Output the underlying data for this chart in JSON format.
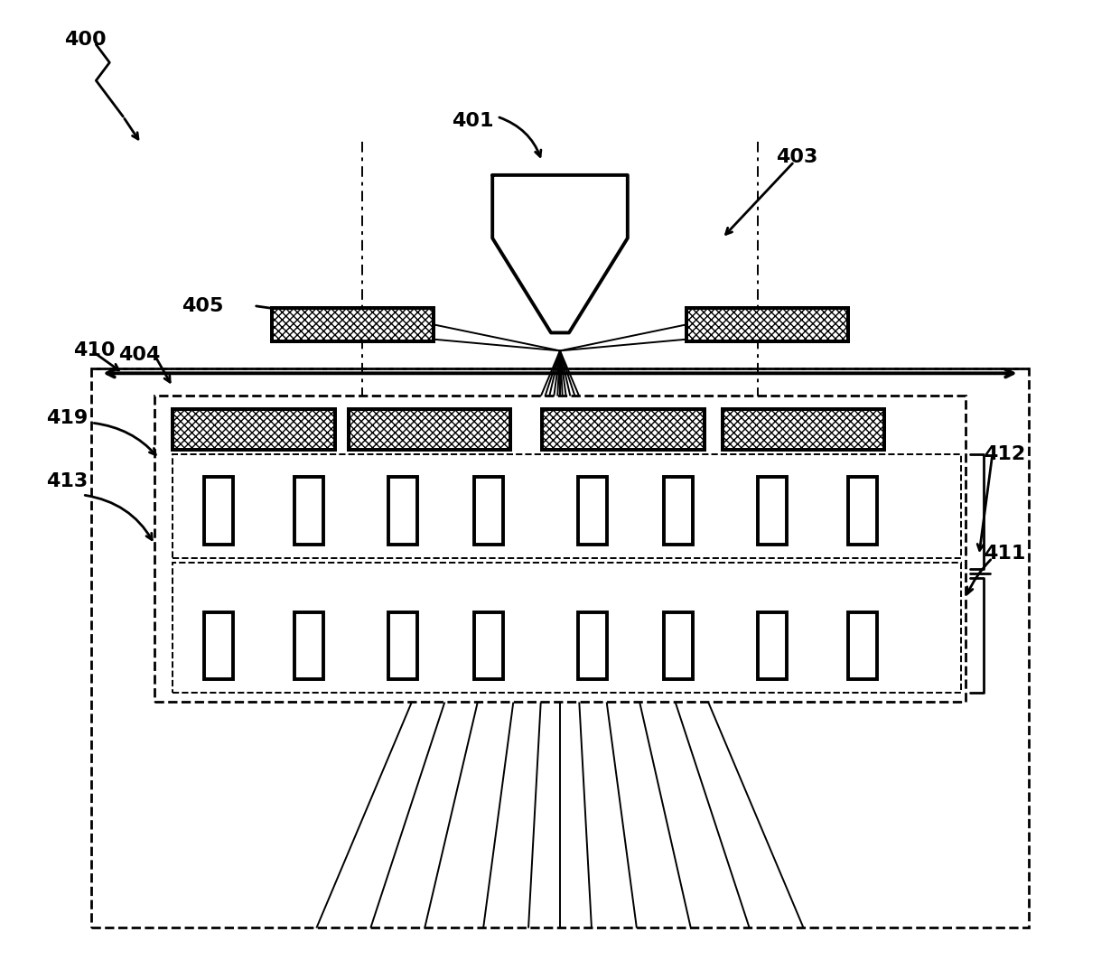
{
  "background_color": "#ffffff",
  "line_color": "#000000",
  "lw_thick": 2.8,
  "lw_medium": 2.0,
  "lw_thin": 1.4,
  "fig_width": 12.4,
  "fig_height": 10.63
}
